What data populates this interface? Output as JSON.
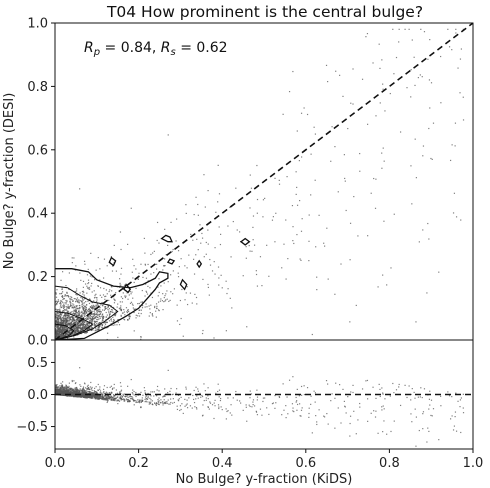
{
  "chart_data": {
    "type": "scatter",
    "title": "T04 How prominent is the central bulge?",
    "annotation": {
      "rp_label": "R",
      "rp_sub": "p",
      "rp_value": " = 0.84, ",
      "rs_label": "R",
      "rs_sub": "s",
      "rs_value": " = 0.62"
    },
    "xlabel": "No Bulge? y-fraction (KiDS)",
    "ylabel_top": "No Bulge? y-fraction (DESI)",
    "xlim": [
      0,
      1
    ],
    "top_panel": {
      "ylim": [
        0,
        1
      ],
      "yticks": [
        "0.0",
        "0.2",
        "0.4",
        "0.6",
        "0.8",
        "1.0"
      ],
      "reference_line": {
        "style": "dashed",
        "from": [
          0,
          0
        ],
        "to": [
          1,
          1
        ]
      },
      "contours": [
        {
          "level": "outer",
          "points": [
            [
              0,
              0.225
            ],
            [
              0.04,
              0.225
            ],
            [
              0.08,
              0.215
            ],
            [
              0.1,
              0.19
            ],
            [
              0.14,
              0.17
            ],
            [
              0.18,
              0.165
            ],
            [
              0.21,
              0.175
            ],
            [
              0.24,
              0.195
            ],
            [
              0.25,
              0.215
            ],
            [
              0.27,
              0.21
            ],
            [
              0.27,
              0.195
            ],
            [
              0.25,
              0.18
            ],
            [
              0.24,
              0.16
            ],
            [
              0.22,
              0.13
            ],
            [
              0.2,
              0.1
            ],
            [
              0.17,
              0.075
            ],
            [
              0.13,
              0.045
            ],
            [
              0.1,
              0.025
            ],
            [
              0.07,
              0.005
            ],
            [
              0.0,
              0.0
            ]
          ]
        },
        {
          "level": "mid",
          "points": [
            [
              0,
              0.17
            ],
            [
              0.03,
              0.165
            ],
            [
              0.06,
              0.14
            ],
            [
              0.09,
              0.12
            ],
            [
              0.13,
              0.11
            ],
            [
              0.15,
              0.09
            ],
            [
              0.12,
              0.06
            ],
            [
              0.09,
              0.035
            ],
            [
              0.05,
              0.015
            ],
            [
              0.02,
              0.005
            ],
            [
              0,
              0
            ]
          ]
        },
        {
          "level": "inner1",
          "points": [
            [
              0,
              0.09
            ],
            [
              0.03,
              0.085
            ],
            [
              0.06,
              0.07
            ],
            [
              0.09,
              0.05
            ],
            [
              0.07,
              0.03
            ],
            [
              0.04,
              0.012
            ],
            [
              0,
              0
            ]
          ]
        },
        {
          "level": "inner2",
          "points": [
            [
              0,
              0.05
            ],
            [
              0.025,
              0.045
            ],
            [
              0.045,
              0.03
            ],
            [
              0.035,
              0.015
            ],
            [
              0.015,
              0.005
            ],
            [
              0,
              0
            ]
          ]
        },
        {
          "level": "island",
          "points": [
            [
              0.255,
              0.32
            ],
            [
              0.27,
              0.31
            ],
            [
              0.28,
              0.31
            ],
            [
              0.275,
              0.325
            ],
            [
              0.265,
              0.33
            ]
          ]
        },
        {
          "level": "island",
          "points": [
            [
              0.445,
              0.31
            ],
            [
              0.455,
              0.3
            ],
            [
              0.465,
              0.31
            ],
            [
              0.455,
              0.32
            ]
          ]
        },
        {
          "level": "island",
          "points": [
            [
              0.13,
              0.245
            ],
            [
              0.14,
              0.235
            ],
            [
              0.145,
              0.25
            ],
            [
              0.135,
              0.26
            ]
          ]
        },
        {
          "level": "island",
          "points": [
            [
              0.27,
              0.245
            ],
            [
              0.28,
              0.24
            ],
            [
              0.285,
              0.25
            ],
            [
              0.275,
              0.255
            ]
          ]
        },
        {
          "level": "island",
          "points": [
            [
              0.34,
              0.24
            ],
            [
              0.345,
              0.23
            ],
            [
              0.35,
              0.24
            ],
            [
              0.345,
              0.25
            ]
          ]
        },
        {
          "level": "island",
          "points": [
            [
              0.3,
              0.175
            ],
            [
              0.31,
              0.16
            ],
            [
              0.315,
              0.175
            ],
            [
              0.305,
              0.19
            ]
          ]
        },
        {
          "level": "island",
          "points": [
            [
              0.165,
              0.16
            ],
            [
              0.175,
              0.15
            ],
            [
              0.18,
              0.16
            ],
            [
              0.17,
              0.175
            ]
          ]
        }
      ]
    },
    "bottom_panel": {
      "ylim": [
        -0.85,
        0.85
      ],
      "yticks": [
        "0.5",
        "0.0",
        "−0.5"
      ],
      "reference_line": {
        "style": "dashed",
        "y": 0
      }
    },
    "xticks": [
      "0.0",
      "0.2",
      "0.4",
      "0.6",
      "0.8",
      "1.0"
    ],
    "point_color": "#555555",
    "line_color": "#111111"
  }
}
